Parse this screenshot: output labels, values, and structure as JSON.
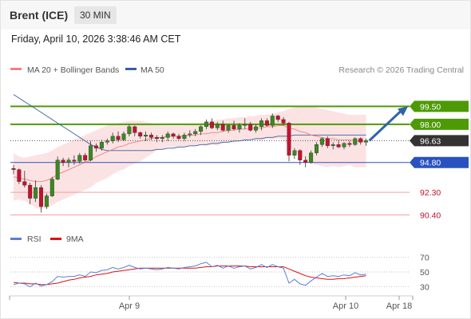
{
  "header": {
    "title": "Brent (ICE)",
    "interval": "30 MIN"
  },
  "timestamp": "Friday, April 10, 2026 3:38:46 AM CET",
  "legend": {
    "ma20": "MA 20 + Bollinger Bands",
    "ma50": "MA 50",
    "credit": "Research © 2026 Trading Central"
  },
  "rsi_legend": {
    "rsi": "RSI",
    "ma9": "9MA"
  },
  "colors": {
    "up": "#3a8a1e",
    "down": "#c8102e",
    "support": "#2a52be",
    "resistance": "#4e9a06",
    "target_line": "#f2a0a0",
    "band": "#fbdada",
    "ma20": "#f08080",
    "ma50": "#3a5fa0",
    "rsi": "#5b7fd6",
    "rsi_ma": "#e01010",
    "arrow": "#2f64a8"
  },
  "chart_data": {
    "type": "line",
    "title": "Brent (ICE)",
    "levels": [
      {
        "value": 99.5,
        "label": "99.50",
        "kind": "resistance"
      },
      {
        "value": 98.0,
        "label": "98.00",
        "kind": "resistance"
      },
      {
        "value": 96.63,
        "label": "96.63",
        "kind": "last"
      },
      {
        "value": 94.8,
        "label": "94.80",
        "kind": "support"
      },
      {
        "value": 92.3,
        "label": "92.30",
        "kind": "target"
      },
      {
        "value": 90.4,
        "label": "90.40",
        "kind": "target"
      }
    ],
    "ylim": [
      89.5,
      101
    ],
    "x_ticks": [
      "Apr 9",
      "Apr 10",
      "Apr 18"
    ],
    "candles": [
      [
        94.3,
        94.6,
        93.8,
        94.2
      ],
      [
        94.2,
        94.3,
        93.0,
        93.2
      ],
      [
        93.2,
        94.1,
        92.7,
        92.9
      ],
      [
        92.9,
        93.1,
        91.3,
        91.8
      ],
      [
        91.8,
        93.3,
        91.5,
        92.7
      ],
      [
        92.7,
        92.9,
        90.6,
        91.1
      ],
      [
        91.1,
        92.2,
        90.9,
        92.0
      ],
      [
        92.0,
        93.6,
        91.9,
        93.4
      ],
      [
        93.4,
        95.3,
        93.3,
        95.0
      ],
      [
        95.0,
        95.2,
        94.5,
        94.8
      ],
      [
        94.8,
        95.2,
        94.4,
        95.0
      ],
      [
        95.0,
        95.4,
        94.6,
        94.9
      ],
      [
        94.9,
        95.6,
        94.7,
        95.4
      ],
      [
        95.4,
        95.6,
        94.8,
        95.0
      ],
      [
        95.0,
        96.6,
        94.9,
        96.2
      ],
      [
        96.2,
        96.4,
        95.7,
        96.0
      ],
      [
        96.0,
        96.7,
        95.8,
        96.5
      ],
      [
        96.5,
        96.8,
        96.3,
        96.6
      ],
      [
        96.6,
        97.3,
        96.4,
        97.0
      ],
      [
        97.0,
        97.4,
        96.5,
        96.7
      ],
      [
        96.7,
        97.4,
        96.6,
        97.2
      ],
      [
        97.2,
        98.0,
        97.0,
        97.8
      ],
      [
        97.8,
        97.9,
        97.0,
        97.3
      ],
      [
        97.3,
        97.4,
        96.8,
        97.0
      ],
      [
        97.0,
        97.4,
        96.6,
        97.1
      ],
      [
        97.1,
        97.3,
        96.7,
        96.9
      ],
      [
        96.9,
        97.1,
        96.5,
        96.8
      ],
      [
        96.8,
        97.1,
        96.5,
        96.9
      ],
      [
        96.9,
        97.4,
        96.6,
        97.2
      ],
      [
        97.2,
        97.3,
        96.8,
        97.0
      ],
      [
        97.0,
        97.2,
        96.7,
        96.8
      ],
      [
        96.8,
        97.3,
        96.6,
        97.1
      ],
      [
        97.1,
        97.5,
        96.9,
        97.2
      ],
      [
        97.2,
        97.6,
        97.0,
        97.4
      ],
      [
        97.4,
        97.9,
        97.1,
        97.8
      ],
      [
        97.8,
        98.4,
        97.6,
        98.2
      ],
      [
        98.2,
        98.5,
        97.6,
        97.7
      ],
      [
        97.7,
        98.2,
        97.5,
        98.0
      ],
      [
        98.0,
        98.3,
        97.4,
        97.5
      ],
      [
        97.5,
        98.0,
        97.3,
        97.9
      ],
      [
        97.9,
        98.3,
        97.5,
        97.6
      ],
      [
        97.6,
        98.1,
        97.3,
        97.9
      ],
      [
        97.9,
        98.5,
        97.6,
        98.0
      ],
      [
        98.0,
        98.2,
        97.4,
        97.5
      ],
      [
        97.5,
        98.0,
        97.3,
        97.8
      ],
      [
        97.8,
        98.5,
        97.5,
        98.3
      ],
      [
        98.3,
        98.5,
        97.8,
        97.9
      ],
      [
        97.9,
        98.9,
        97.7,
        98.7
      ],
      [
        98.7,
        98.8,
        98.2,
        98.4
      ],
      [
        98.4,
        98.6,
        97.9,
        98.1
      ],
      [
        98.1,
        98.2,
        94.9,
        95.4
      ],
      [
        95.4,
        96.0,
        95.1,
        95.8
      ],
      [
        95.8,
        95.9,
        94.6,
        95.0
      ],
      [
        95.0,
        95.3,
        94.4,
        94.8
      ],
      [
        94.8,
        95.8,
        94.7,
        95.6
      ],
      [
        95.6,
        96.5,
        95.4,
        96.3
      ],
      [
        96.3,
        96.9,
        96.1,
        96.8
      ],
      [
        96.8,
        97.0,
        96.0,
        96.2
      ],
      [
        96.2,
        96.5,
        95.9,
        96.3
      ],
      [
        96.3,
        96.6,
        96.0,
        96.1
      ],
      [
        96.1,
        96.5,
        95.9,
        96.4
      ],
      [
        96.4,
        96.6,
        96.1,
        96.3
      ],
      [
        96.3,
        96.9,
        96.2,
        96.8
      ],
      [
        96.8,
        96.9,
        96.3,
        96.5
      ],
      [
        96.5,
        96.8,
        96.2,
        96.63
      ]
    ],
    "ma20": [
      93.6,
      93.5,
      93.4,
      93.3,
      93.2,
      93.2,
      93.3,
      93.5,
      93.8,
      94.0,
      94.2,
      94.4,
      94.6,
      94.8,
      95.0,
      95.3,
      95.5,
      95.7,
      95.9,
      96.1,
      96.2,
      96.4,
      96.5,
      96.6,
      96.7,
      96.8,
      96.9,
      96.9,
      97.0,
      97.0,
      97.0,
      97.0,
      97.1,
      97.1,
      97.2,
      97.2,
      97.3,
      97.3,
      97.4,
      97.5,
      97.5,
      97.6,
      97.6,
      97.7,
      97.7,
      97.7,
      97.8,
      97.8,
      97.9,
      97.9,
      97.7,
      97.6,
      97.4,
      97.3,
      97.1,
      97.0,
      96.9,
      96.8,
      96.8,
      96.7,
      96.7,
      96.7,
      96.6,
      96.6,
      96.6
    ],
    "ma50": [
      100.5,
      100.2,
      99.9,
      99.6,
      99.3,
      99.0,
      98.7,
      98.4,
      98.1,
      97.8,
      97.5,
      97.2,
      96.9,
      96.6,
      96.3,
      96.1,
      95.9,
      95.8,
      95.8,
      95.8,
      95.8,
      95.8,
      95.8,
      95.8,
      95.8,
      95.8,
      95.9,
      95.9,
      96.0,
      96.0,
      96.1,
      96.1,
      96.2,
      96.2,
      96.3,
      96.3,
      96.4,
      96.4,
      96.5,
      96.5,
      96.6,
      96.6,
      96.7,
      96.7,
      96.8,
      96.8,
      96.9,
      96.9,
      97.0,
      97.0,
      97.0,
      97.1,
      97.1,
      97.1,
      97.1,
      97.1,
      97.1,
      97.1,
      97.1,
      97.1,
      97.1,
      97.1,
      97.1,
      97.1,
      97.1
    ],
    "bb_upper": [
      95.6,
      95.3,
      95.2,
      95.3,
      95.4,
      95.5,
      95.6,
      95.8,
      96.1,
      96.3,
      96.5,
      96.7,
      96.9,
      97.1,
      97.3,
      97.5,
      97.7,
      97.9,
      98.0,
      98.1,
      98.2,
      98.3,
      98.3,
      98.3,
      98.2,
      98.1,
      98.0,
      97.9,
      97.9,
      97.9,
      97.9,
      97.9,
      98.0,
      98.0,
      98.1,
      98.2,
      98.3,
      98.4,
      98.4,
      98.5,
      98.5,
      98.6,
      98.6,
      98.7,
      98.7,
      98.8,
      98.8,
      98.9,
      99.0,
      99.1,
      99.3,
      99.4,
      99.5,
      99.5,
      99.5,
      99.4,
      99.3,
      99.2,
      99.1,
      99.0,
      98.9,
      98.8,
      98.8,
      98.8,
      98.8
    ],
    "bb_lower": [
      91.6,
      91.7,
      91.6,
      91.3,
      91.0,
      90.9,
      91.0,
      91.2,
      91.5,
      91.7,
      91.9,
      92.1,
      92.3,
      92.5,
      92.7,
      93.1,
      93.3,
      93.5,
      93.8,
      94.1,
      94.2,
      94.5,
      94.7,
      94.9,
      95.2,
      95.5,
      95.8,
      95.9,
      96.1,
      96.1,
      96.1,
      96.1,
      96.2,
      96.2,
      96.3,
      96.2,
      96.3,
      96.2,
      96.4,
      96.5,
      96.5,
      96.6,
      96.6,
      96.7,
      96.7,
      96.6,
      96.8,
      96.7,
      96.8,
      96.7,
      96.1,
      95.8,
      95.3,
      95.1,
      94.7,
      94.6,
      94.5,
      94.4,
      94.5,
      94.4,
      94.5,
      94.6,
      94.4,
      94.4,
      94.4
    ],
    "projection": {
      "from": 96.63,
      "to": 99.5
    },
    "rsi": {
      "ylim": [
        20,
        80
      ],
      "ticks": [
        70,
        50,
        30
      ],
      "rsi": [
        33,
        35,
        34,
        30,
        35,
        31,
        33,
        37,
        44,
        43,
        44,
        44,
        46,
        44,
        50,
        49,
        52,
        53,
        56,
        54,
        56,
        59,
        56,
        54,
        55,
        54,
        53,
        54,
        56,
        55,
        54,
        56,
        57,
        58,
        61,
        63,
        57,
        59,
        55,
        58,
        55,
        57,
        58,
        54,
        56,
        60,
        56,
        60,
        57,
        55,
        35,
        40,
        34,
        32,
        38,
        43,
        48,
        44,
        45,
        44,
        46,
        45,
        49,
        46,
        47
      ],
      "ma9": [
        36,
        35,
        35,
        34,
        34,
        33,
        33,
        34,
        35,
        37,
        39,
        40,
        42,
        43,
        44,
        46,
        47,
        48,
        50,
        51,
        52,
        53,
        54,
        55,
        55,
        55,
        55,
        55,
        55,
        55,
        55,
        55,
        55,
        55,
        56,
        57,
        57,
        58,
        58,
        58,
        58,
        58,
        58,
        57,
        57,
        57,
        57,
        57,
        57,
        57,
        54,
        51,
        48,
        45,
        43,
        42,
        41,
        40,
        40,
        41,
        41,
        42,
        43,
        44,
        45
      ]
    }
  }
}
